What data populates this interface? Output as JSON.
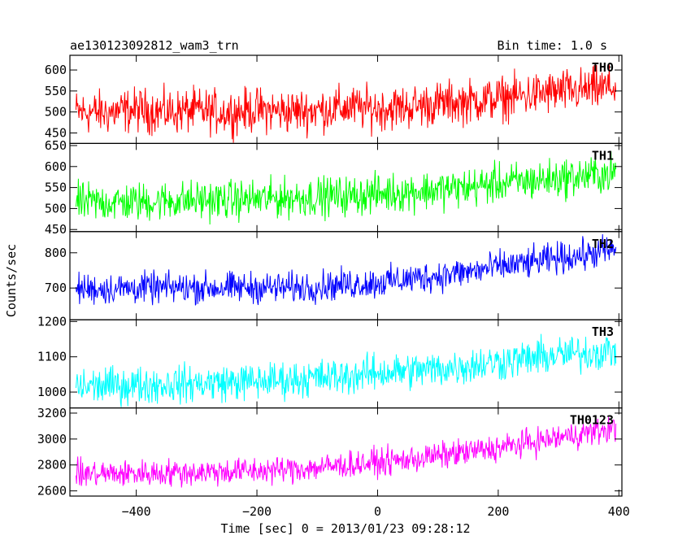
{
  "header": {
    "title": "ae130123092812_wam3_trn",
    "bin_time": "Bin time: 1.0 s"
  },
  "chart_data": {
    "type": "line",
    "title": "ae130123092812_wam3_trn",
    "subtitle": "Bin time: 1.0 s",
    "xlabel": "Time [sec] 0 = 2013/01/23 09:28:12",
    "ylabel": "Counts/sec",
    "xlim": [
      -510,
      405
    ],
    "x_ticks": [
      -400,
      -200,
      0,
      200,
      400
    ],
    "x_tick_labels": [
      "−400",
      "−200",
      "0",
      "200",
      "400"
    ],
    "grid": false,
    "panels": [
      {
        "name": "TH0",
        "color": "#ff0000",
        "ylim": [
          425,
          635
        ],
        "y_ticks": [
          450,
          500,
          550,
          600
        ],
        "y_tick_labels": [
          "450",
          "500",
          "550",
          "600"
        ],
        "x": [
          -500,
          -450,
          -400,
          -350,
          -300,
          -250,
          -200,
          -150,
          -100,
          -50,
          0,
          50,
          100,
          150,
          200,
          250,
          300,
          350,
          395
        ],
        "y": [
          500,
          498,
          505,
          500,
          503,
          499,
          505,
          501,
          505,
          510,
          508,
          512,
          520,
          525,
          532,
          540,
          548,
          552,
          560
        ],
        "noise_amplitude": 45
      },
      {
        "name": "TH1",
        "color": "#00ff00",
        "ylim": [
          445,
          655
        ],
        "y_ticks": [
          450,
          500,
          550,
          600,
          650
        ],
        "y_tick_labels": [
          "450",
          "500",
          "550",
          "600",
          "650"
        ],
        "x": [
          -500,
          -450,
          -400,
          -350,
          -300,
          -250,
          -200,
          -150,
          -100,
          -50,
          0,
          50,
          100,
          150,
          200,
          250,
          300,
          350,
          395
        ],
        "y": [
          513,
          515,
          515,
          518,
          520,
          520,
          522,
          525,
          528,
          530,
          535,
          540,
          545,
          550,
          560,
          565,
          572,
          578,
          585
        ],
        "noise_amplitude": 40
      },
      {
        "name": "TH2",
        "color": "#0000ff",
        "ylim": [
          610,
          860
        ],
        "y_ticks": [
          700,
          800
        ],
        "y_tick_labels": [
          "700",
          "800"
        ],
        "x": [
          -500,
          -450,
          -400,
          -350,
          -300,
          -250,
          -200,
          -150,
          -100,
          -50,
          0,
          50,
          100,
          150,
          200,
          250,
          300,
          350,
          395
        ],
        "y": [
          698,
          698,
          700,
          700,
          702,
          700,
          702,
          700,
          705,
          710,
          715,
          725,
          735,
          745,
          760,
          770,
          785,
          795,
          810
        ],
        "noise_amplitude": 38
      },
      {
        "name": "TH3",
        "color": "#00ffff",
        "ylim": [
          955,
          1205
        ],
        "y_ticks": [
          1000,
          1100,
          1200
        ],
        "y_tick_labels": [
          "1000",
          "1100",
          "1200"
        ],
        "x": [
          -500,
          -450,
          -400,
          -350,
          -300,
          -250,
          -200,
          -150,
          -100,
          -50,
          0,
          50,
          100,
          150,
          200,
          250,
          300,
          350,
          395
        ],
        "y": [
          1015,
          1018,
          1020,
          1022,
          1024,
          1028,
          1030,
          1035,
          1040,
          1045,
          1055,
          1060,
          1065,
          1075,
          1085,
          1095,
          1105,
          1110,
          1120
        ],
        "noise_amplitude": 45
      },
      {
        "name": "TH0123",
        "color": "#ff00ff",
        "ylim": [
          2560,
          3240
        ],
        "y_ticks": [
          2600,
          2800,
          3000,
          3200
        ],
        "y_tick_labels": [
          "2600",
          "2800",
          "3000",
          "3200"
        ],
        "x": [
          -500,
          -450,
          -400,
          -350,
          -300,
          -250,
          -200,
          -150,
          -100,
          -50,
          0,
          50,
          100,
          150,
          200,
          250,
          300,
          350,
          395
        ],
        "y": [
          2730,
          2732,
          2735,
          2740,
          2745,
          2750,
          2755,
          2765,
          2780,
          2800,
          2820,
          2840,
          2870,
          2900,
          2930,
          2970,
          3010,
          3050,
          3080
        ],
        "noise_amplitude": 90
      }
    ]
  }
}
